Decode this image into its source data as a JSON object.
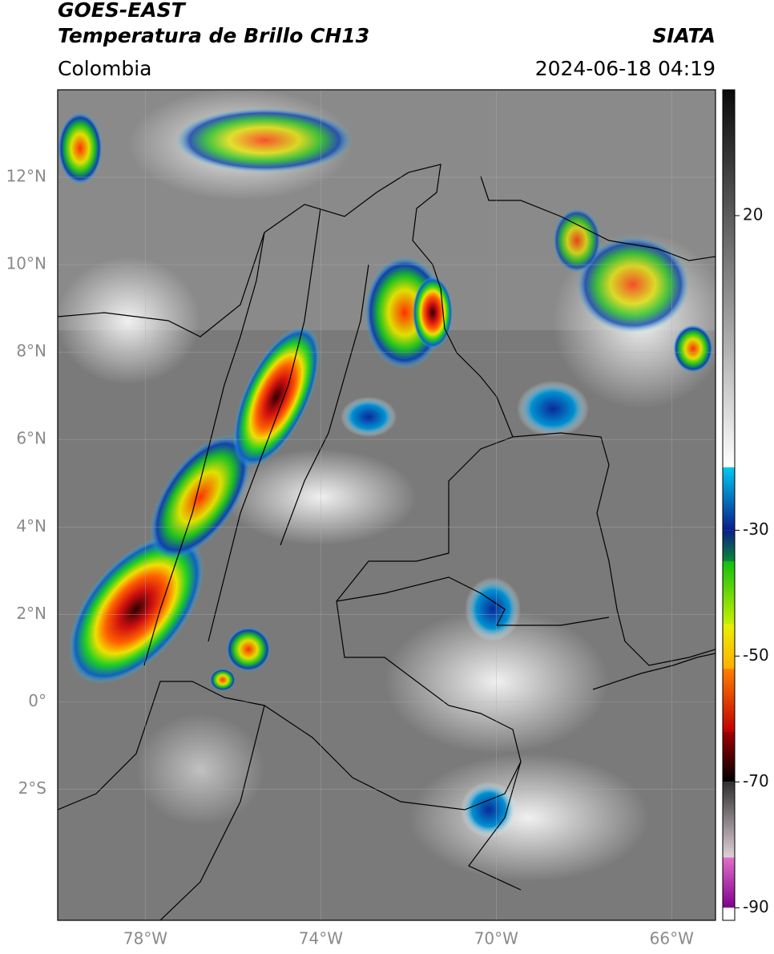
{
  "header": {
    "title": "GOES-EAST",
    "subtitle": "Temperatura de Brillo CH13",
    "region": "Colombia",
    "source": "SIATA",
    "datetime": "2024-06-18 04:19"
  },
  "map": {
    "xlim": [
      -80,
      -65
    ],
    "ylim": [
      -5,
      14
    ],
    "grid": true,
    "xticks": [
      {
        "value": -78,
        "label": "78°W"
      },
      {
        "value": -74,
        "label": "74°W"
      },
      {
        "value": -70,
        "label": "70°W"
      },
      {
        "value": -66,
        "label": "66°W"
      }
    ],
    "yticks": [
      {
        "value": 12,
        "label": "12°N"
      },
      {
        "value": 10,
        "label": "10°N"
      },
      {
        "value": 8,
        "label": "8°N"
      },
      {
        "value": 6,
        "label": "6°N"
      },
      {
        "value": 4,
        "label": "4°N"
      },
      {
        "value": 2,
        "label": "2°N"
      },
      {
        "value": 0,
        "label": "0°"
      },
      {
        "value": -2,
        "label": "2°S"
      }
    ]
  },
  "colorbar": {
    "lim": [
      -92,
      40
    ],
    "ticks": [
      20,
      -30,
      -50,
      -70,
      -90
    ],
    "bands": [
      {
        "from": 40,
        "to": -20,
        "top": "#0a0a0a",
        "bottom": "#ffffff"
      },
      {
        "from": -20,
        "to": -30,
        "top": "#00c8f0",
        "bottom": "#0a1e8c"
      },
      {
        "from": -30,
        "to": -35,
        "top": "#0a1e8c",
        "bottom": "#0a8a30"
      },
      {
        "from": -35,
        "to": -45,
        "top": "#10c010",
        "bottom": "#c8f000"
      },
      {
        "from": -45,
        "to": -52,
        "top": "#e8f000",
        "bottom": "#ffb000"
      },
      {
        "from": -52,
        "to": -62,
        "top": "#ff8000",
        "bottom": "#c00000"
      },
      {
        "from": -62,
        "to": -70,
        "top": "#a00000",
        "bottom": "#000000"
      },
      {
        "from": -70,
        "to": -82,
        "top": "#303030",
        "bottom": "#e0d0d8"
      },
      {
        "from": -82,
        "to": -90,
        "top": "#e070c8",
        "bottom": "#800090"
      },
      {
        "from": -90,
        "to": -92,
        "top": "#ffffff",
        "bottom": "#ffffff"
      }
    ]
  }
}
